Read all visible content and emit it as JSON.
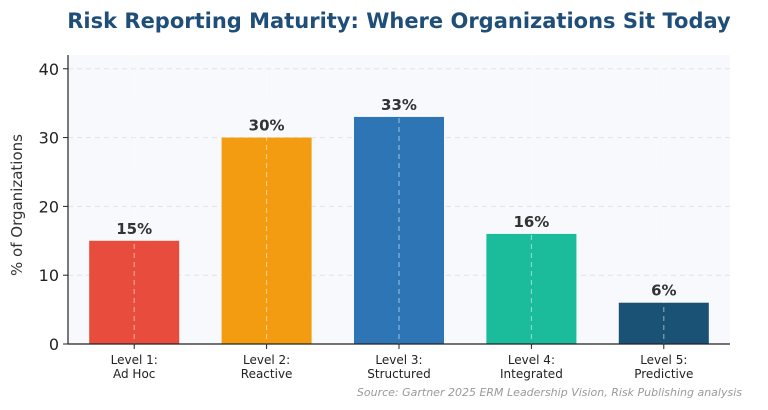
{
  "chart_data": {
    "type": "bar",
    "title": "Risk Reporting Maturity: Where Organizations Sit Today",
    "xlabel": "",
    "ylabel": "% of Organizations",
    "ylim": [
      0,
      42
    ],
    "yticks": [
      0,
      10,
      20,
      30,
      40
    ],
    "grid": true,
    "categories": [
      [
        "Level 1:",
        "Ad Hoc"
      ],
      [
        "Level 2:",
        "Reactive"
      ],
      [
        "Level 3:",
        "Structured"
      ],
      [
        "Level 4:",
        "Integrated"
      ],
      [
        "Level 5:",
        "Predictive"
      ]
    ],
    "values": [
      15,
      30,
      33,
      16,
      6
    ],
    "data_labels": [
      "15%",
      "30%",
      "33%",
      "16%",
      "6%"
    ],
    "colors": [
      "#e84c3d",
      "#f39c12",
      "#2e75b6",
      "#1abc9c",
      "#1a5276"
    ],
    "source": "Source: Gartner 2025 ERM Leadership Vision, Risk Publishing analysis"
  }
}
